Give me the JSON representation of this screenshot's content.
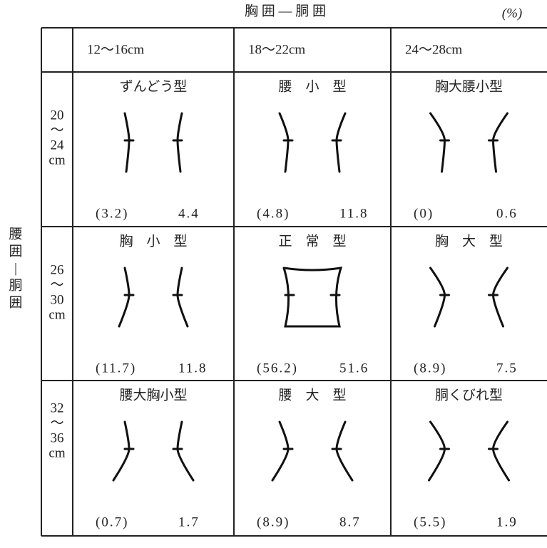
{
  "header": {
    "title": "胸 囲 — 胴 囲",
    "unit": "(%)"
  },
  "side_label": [
    "腰",
    "囲",
    "|",
    "胴",
    "囲"
  ],
  "columns": [
    "12～16cm",
    "18～22cm",
    "24～28cm"
  ],
  "rows": [
    {
      "label": [
        "20",
        "～",
        "24",
        "cm"
      ],
      "cells": [
        {
          "name": "ずんどう型",
          "values": [
            "(3.2)",
            "4.4"
          ]
        },
        {
          "name": "腰　小　型",
          "values": [
            "(4.8)",
            "11.8"
          ]
        },
        {
          "name": "胸大腰小型",
          "values": [
            "(0)",
            "0.6"
          ]
        }
      ]
    },
    {
      "label": [
        "26",
        "～",
        "30",
        "cm"
      ],
      "cells": [
        {
          "name": "胸　小　型",
          "values": [
            "(11.7)",
            "11.8"
          ]
        },
        {
          "name": "正　常　型",
          "values": [
            "(56.2)",
            "51.6"
          ]
        },
        {
          "name": "胸　大　型",
          "values": [
            "(8.9)",
            "7.5"
          ]
        }
      ]
    },
    {
      "label": [
        "32",
        "～",
        "36",
        "cm"
      ],
      "cells": [
        {
          "name": "腰大胸小型",
          "values": [
            "(0.7)",
            "1.7"
          ]
        },
        {
          "name": "腰　大　型",
          "values": [
            "(8.9)",
            "8.7"
          ]
        },
        {
          "name": "胴くびれ型",
          "values": [
            "(5.5)",
            "1.9"
          ]
        }
      ]
    }
  ]
}
